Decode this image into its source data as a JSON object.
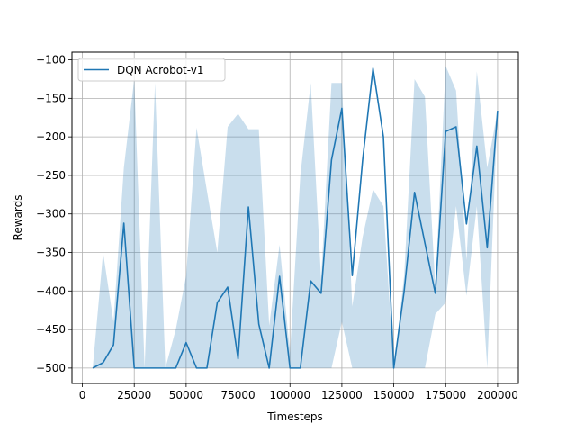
{
  "chart_data": {
    "type": "line",
    "title": "",
    "xlabel": "Timesteps",
    "ylabel": "Rewards",
    "xlim": [
      -5000,
      210000
    ],
    "ylim": [
      -520,
      -90
    ],
    "xticks": [
      0,
      25000,
      50000,
      75000,
      100000,
      125000,
      150000,
      175000,
      200000
    ],
    "xtick_labels": [
      "0",
      "25000",
      "50000",
      "75000",
      "100000",
      "125000",
      "150000",
      "175000",
      "200000"
    ],
    "yticks": [
      -500,
      -450,
      -400,
      -350,
      -300,
      -250,
      -200,
      -150,
      -100
    ],
    "ytick_labels": [
      "−500",
      "−450",
      "−400",
      "−350",
      "−300",
      "−250",
      "−200",
      "−150",
      "−100"
    ],
    "grid": true,
    "legend_position": "top-left",
    "colors": {
      "line": "#1f77b4",
      "band": "#1f77b4"
    },
    "series": [
      {
        "name": "DQN Acrobot-v1",
        "x": [
          5000,
          10000,
          15000,
          20000,
          25000,
          30000,
          35000,
          40000,
          45000,
          50000,
          55000,
          60000,
          65000,
          70000,
          75000,
          80000,
          85000,
          90000,
          95000,
          100000,
          105000,
          110000,
          115000,
          120000,
          125000,
          130000,
          135000,
          140000,
          145000,
          150000,
          155000,
          160000,
          165000,
          170000,
          175000,
          180000,
          185000,
          190000,
          195000,
          200000
        ],
        "y": [
          -500,
          -493,
          -470,
          -312,
          -500,
          -500,
          -500,
          -500,
          -500,
          -467,
          -500,
          -500,
          -415,
          -395,
          -488,
          -291,
          -443,
          -500,
          -381,
          -500,
          -500,
          -387,
          -403,
          -230,
          -163,
          -380,
          -230,
          -111,
          -200,
          -500,
          -400,
          -272,
          -338,
          -403,
          -193,
          -187,
          -313,
          -212,
          -344,
          -166
        ],
        "upper": [
          -500,
          -350,
          -440,
          -240,
          -125,
          -500,
          -130,
          -500,
          -450,
          -380,
          -188,
          -270,
          -350,
          -187,
          -170,
          -190,
          -190,
          -445,
          -340,
          -480,
          -250,
          -130,
          -385,
          -130,
          -130,
          -420,
          -330,
          -268,
          -290,
          -500,
          -380,
          -125,
          -148,
          -395,
          -108,
          -140,
          -360,
          -115,
          -240,
          -166
        ],
        "lower": [
          -500,
          -500,
          -500,
          -500,
          -500,
          -500,
          -500,
          -500,
          -500,
          -500,
          -500,
          -500,
          -500,
          -500,
          -500,
          -500,
          -500,
          -500,
          -500,
          -500,
          -500,
          -500,
          -500,
          -500,
          -440,
          -500,
          -500,
          -500,
          -500,
          -500,
          -500,
          -500,
          -500,
          -430,
          -415,
          -290,
          -406,
          -290,
          -500,
          -166
        ]
      }
    ]
  }
}
